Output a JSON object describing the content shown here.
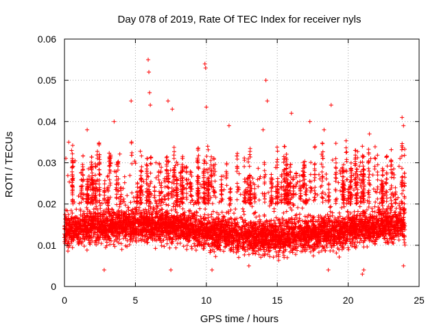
{
  "chart_data": {
    "type": "scatter",
    "title": "Day 078 of 2019, Rate Of TEC Index for receiver nyls",
    "xlabel": "GPS time / hours",
    "ylabel": "ROTI / TECUs",
    "xlim": [
      0,
      25
    ],
    "ylim": [
      0,
      0.06
    ],
    "xticks": [
      0,
      5,
      10,
      15,
      20,
      25
    ],
    "xtick_labels": [
      "0",
      "5",
      "10",
      "15",
      "20",
      "25"
    ],
    "yticks": [
      0,
      0.01,
      0.02,
      0.03,
      0.04,
      0.05,
      0.06
    ],
    "ytick_labels": [
      "0",
      "0.01",
      "0.02",
      "0.03",
      "0.04",
      "0.05",
      "0.06"
    ],
    "grid": true,
    "marker": "+",
    "color": "#ff0000",
    "series": [
      {
        "name": "ROTI",
        "x_range": [
          0,
          24
        ],
        "note": "dense cloud of ROTI samples, bulk between 0.005 and 0.025 TECU/s",
        "points": [
          [
            0.3,
            0.035
          ],
          [
            0.5,
            0.033
          ],
          [
            1.6,
            0.038
          ],
          [
            3.5,
            0.04
          ],
          [
            4.7,
            0.045
          ],
          [
            5.9,
            0.055
          ],
          [
            5.95,
            0.052
          ],
          [
            6.0,
            0.047
          ],
          [
            6.05,
            0.044
          ],
          [
            7.3,
            0.045
          ],
          [
            7.6,
            0.043
          ],
          [
            9.9,
            0.054
          ],
          [
            9.95,
            0.053
          ],
          [
            10.0,
            0.0435
          ],
          [
            11.6,
            0.039
          ],
          [
            14.2,
            0.05
          ],
          [
            14.0,
            0.038
          ],
          [
            14.3,
            0.045
          ],
          [
            16.0,
            0.042
          ],
          [
            17.3,
            0.04
          ],
          [
            18.3,
            0.038
          ],
          [
            18.8,
            0.044
          ],
          [
            21.0,
            0.034
          ],
          [
            21.5,
            0.037
          ],
          [
            23.8,
            0.041
          ],
          [
            23.9,
            0.039
          ],
          [
            2.8,
            0.004
          ],
          [
            10.4,
            0.004
          ],
          [
            18.6,
            0.004
          ],
          [
            21.0,
            0.003
          ],
          [
            21.1,
            0.004
          ],
          [
            23.9,
            0.005
          ],
          [
            13.0,
            0.005
          ],
          [
            7.5,
            0.004
          ]
        ]
      }
    ]
  }
}
